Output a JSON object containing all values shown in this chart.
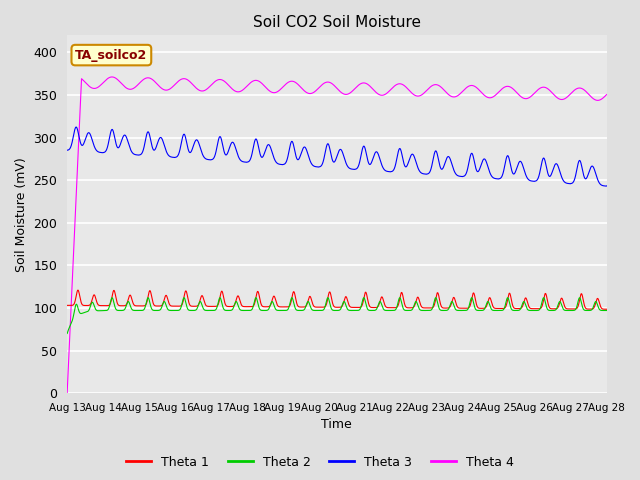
{
  "title": "Soil CO2 Soil Moisture",
  "xlabel": "Time",
  "ylabel": "Soil Moisture (mV)",
  "ylim": [
    0,
    420
  ],
  "yticks": [
    0,
    50,
    100,
    150,
    200,
    250,
    300,
    350,
    400
  ],
  "annotation_text": "TA_soilco2",
  "annotation_box_color": "#ffffcc",
  "annotation_border_color": "#cc8800",
  "annotation_text_color": "#880000",
  "fig_bg_color": "#e0e0e0",
  "axes_bg_color": "#e8e8e8",
  "grid_color": "#ffffff",
  "colors": {
    "Theta 1": "#ff0000",
    "Theta 2": "#00cc00",
    "Theta 3": "#0000ff",
    "Theta 4": "#ff00ff"
  },
  "xtick_labels": [
    "Aug 13",
    "Aug 14",
    "Aug 15",
    "Aug 16",
    "Aug 17",
    "Aug 18",
    "Aug 19",
    "Aug 20",
    "Aug 21",
    "Aug 22",
    "Aug 23",
    "Aug 24",
    "Aug 25",
    "Aug 26",
    "Aug 27",
    "Aug 28"
  ]
}
